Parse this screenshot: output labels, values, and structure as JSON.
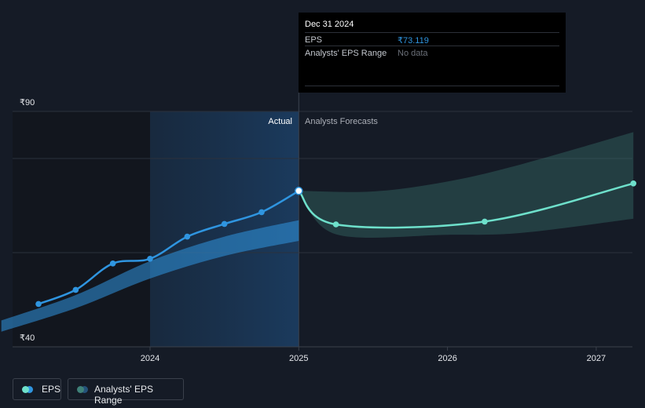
{
  "chart_data": {
    "type": "line",
    "x_axis": {
      "ticks": [
        "2024",
        "2025",
        "2026",
        "2027"
      ]
    },
    "y_axis": {
      "ticks": [
        "₹90",
        "₹40"
      ],
      "ylim": [
        40,
        90
      ],
      "unit": "₹"
    },
    "region_labels": {
      "actual": "Actual",
      "forecast": "Analysts Forecasts"
    },
    "series": [
      {
        "name": "EPS",
        "color": "#2f95e0",
        "kind": "actual",
        "points": [
          {
            "x": 2023.25,
            "y": 49.1
          },
          {
            "x": 2023.5,
            "y": 52.1
          },
          {
            "x": 2023.75,
            "y": 57.7
          },
          {
            "x": 2024.0,
            "y": 58.7
          },
          {
            "x": 2024.25,
            "y": 63.4
          },
          {
            "x": 2024.5,
            "y": 66.1
          },
          {
            "x": 2024.75,
            "y": 68.6
          },
          {
            "x": 2025.0,
            "y": 73.119
          }
        ]
      },
      {
        "name": "EPS",
        "color": "#6ee0cb",
        "kind": "forecast",
        "points": [
          {
            "x": 2025.0,
            "y": 73.119
          },
          {
            "x": 2025.25,
            "y": 66.0
          },
          {
            "x": 2026.25,
            "y": 66.6
          },
          {
            "x": 2027.25,
            "y": 74.7
          }
        ]
      }
    ],
    "ranges": [
      {
        "name": "Analysts' EPS Range",
        "kind": "actual",
        "color": "#2f95e0",
        "upper": [
          {
            "x": 2023.0,
            "y": 45.6
          },
          {
            "x": 2023.5,
            "y": 51.0
          },
          {
            "x": 2024.0,
            "y": 58.2
          },
          {
            "x": 2024.5,
            "y": 63.4
          },
          {
            "x": 2025.0,
            "y": 66.9
          }
        ],
        "lower": [
          {
            "x": 2023.0,
            "y": 43.2
          },
          {
            "x": 2023.5,
            "y": 48.2
          },
          {
            "x": 2024.0,
            "y": 54.5
          },
          {
            "x": 2024.5,
            "y": 59.3
          },
          {
            "x": 2025.0,
            "y": 62.5
          }
        ]
      },
      {
        "name": "Analysts' EPS Range",
        "kind": "forecast",
        "color": "#3f8179",
        "upper": [
          {
            "x": 2025.0,
            "y": 73.119
          },
          {
            "x": 2025.5,
            "y": 73.0
          },
          {
            "x": 2026.0,
            "y": 75.1
          },
          {
            "x": 2026.5,
            "y": 78.8
          },
          {
            "x": 2027.25,
            "y": 85.6
          }
        ],
        "lower": [
          {
            "x": 2025.0,
            "y": 73.119
          },
          {
            "x": 2025.25,
            "y": 63.9
          },
          {
            "x": 2026.0,
            "y": 63.8
          },
          {
            "x": 2026.5,
            "y": 64.2
          },
          {
            "x": 2027.25,
            "y": 67.2
          }
        ]
      }
    ],
    "actual_forecast_divider_x": 2025.0,
    "highlight_start_x": 2024.0
  },
  "tooltip": {
    "date": "Dec 31 2024",
    "rows": [
      {
        "label": "EPS",
        "value": "₹73.119"
      },
      {
        "label": "Analysts' EPS Range",
        "value": "No data"
      }
    ]
  },
  "legend": {
    "items": [
      {
        "label": "EPS",
        "color_a": "#6ee0cb",
        "color_b": "#2f95e0"
      },
      {
        "label": "Analysts' EPS Range",
        "color_a": "#3f8179",
        "color_b": "#24527a"
      }
    ]
  }
}
